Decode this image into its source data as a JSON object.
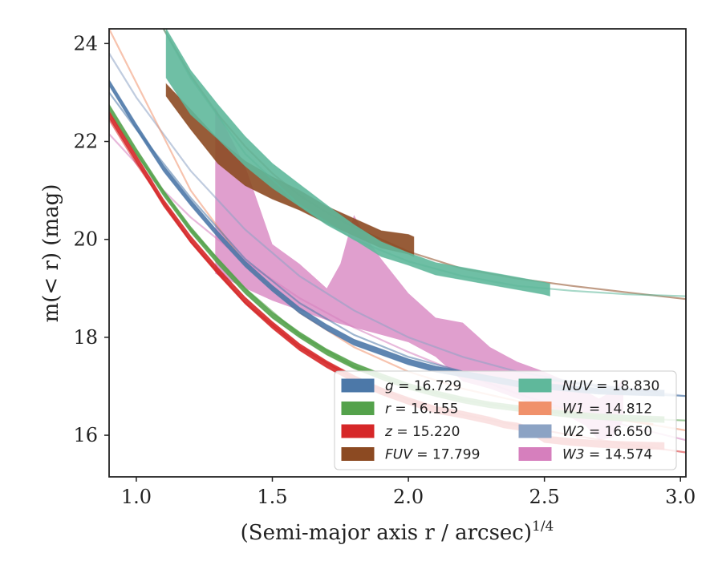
{
  "chart_data": {
    "type": "area",
    "xlabel": "(Semi-major axis r / arcsec)",
    "xlabel_superscript": "1/4",
    "ylabel": "m(< r) (mag)",
    "xlim": [
      0.9,
      3.02
    ],
    "ylim": [
      24.3,
      15.15
    ],
    "y_inverted": true,
    "grid": false,
    "legend_position": "lower-right",
    "legend_columns": 2,
    "x_ticks": [
      "1.0",
      "1.5",
      "2.0",
      "2.5",
      "3.0"
    ],
    "y_ticks": [
      "16",
      "18",
      "20",
      "22",
      "24"
    ],
    "series": [
      {
        "name": "g",
        "total_mag": "16.729",
        "color": "#4c78a8",
        "kind": "band",
        "width": 0.12,
        "x": [
          0.9,
          1.0,
          1.1,
          1.2,
          1.3,
          1.4,
          1.5,
          1.6,
          1.7,
          1.8,
          1.9,
          2.0,
          2.1,
          2.2,
          2.3,
          2.4,
          2.5,
          2.6,
          2.7,
          2.8,
          2.94
        ],
        "y": [
          23.2,
          22.3,
          21.45,
          20.75,
          20.1,
          19.5,
          19.0,
          18.55,
          18.2,
          17.9,
          17.7,
          17.5,
          17.35,
          17.25,
          17.15,
          17.05,
          17.0,
          16.95,
          16.9,
          16.88,
          16.86
        ],
        "model": {
          "x": [
            0.9,
            1.0,
            1.2,
            1.4,
            1.6,
            1.8,
            2.0,
            2.2,
            2.4,
            2.6,
            2.8,
            3.02
          ],
          "y": [
            23.0,
            22.25,
            20.85,
            19.6,
            18.7,
            18.05,
            17.6,
            17.3,
            17.1,
            16.95,
            16.85,
            16.8
          ]
        }
      },
      {
        "name": "r",
        "total_mag": "16.155",
        "color": "#54a24b",
        "kind": "band",
        "width": 0.12,
        "x": [
          0.9,
          1.0,
          1.1,
          1.2,
          1.3,
          1.4,
          1.5,
          1.6,
          1.7,
          1.8,
          1.9,
          2.0,
          2.1,
          2.2,
          2.3,
          2.4,
          2.5,
          2.6,
          2.7,
          2.8,
          2.94
        ],
        "y": [
          22.7,
          21.8,
          20.95,
          20.2,
          19.55,
          18.95,
          18.45,
          18.05,
          17.7,
          17.42,
          17.2,
          17.0,
          16.85,
          16.72,
          16.62,
          16.55,
          16.48,
          16.42,
          16.38,
          16.35,
          16.32
        ],
        "model": {
          "x": [
            0.9,
            1.0,
            1.2,
            1.4,
            1.6,
            1.8,
            2.0,
            2.2,
            2.4,
            2.6,
            2.8,
            3.02
          ],
          "y": [
            22.6,
            21.75,
            20.2,
            19.0,
            18.05,
            17.4,
            17.0,
            16.72,
            16.55,
            16.42,
            16.35,
            16.3
          ]
        }
      },
      {
        "name": "z",
        "total_mag": "15.220",
        "color": "#d62728",
        "kind": "band",
        "width": 0.14,
        "x": [
          0.9,
          1.0,
          1.1,
          1.2,
          1.3,
          1.4,
          1.5,
          1.6,
          1.7,
          1.8,
          1.9,
          2.0,
          2.1,
          2.2,
          2.3,
          2.35,
          2.4,
          2.45,
          2.5,
          2.6,
          2.7,
          2.8,
          2.94
        ],
        "y": [
          22.55,
          21.65,
          20.75,
          20.0,
          19.35,
          18.75,
          18.25,
          17.8,
          17.45,
          17.15,
          16.9,
          16.7,
          16.52,
          16.42,
          16.3,
          16.22,
          16.18,
          16.1,
          15.92,
          15.86,
          15.82,
          15.8,
          15.78
        ],
        "model": {
          "x": [
            0.9,
            1.0,
            1.2,
            1.4,
            1.6,
            1.8,
            2.0,
            2.2,
            2.4,
            2.6,
            2.8,
            3.02
          ],
          "y": [
            22.45,
            21.55,
            19.95,
            18.7,
            17.8,
            17.15,
            16.72,
            16.42,
            16.2,
            16.0,
            15.82,
            15.65
          ]
        }
      },
      {
        "name": "FUV",
        "total_mag": "17.799",
        "color": "#8c4a22",
        "kind": "band",
        "x": [
          1.11,
          1.2,
          1.3,
          1.4,
          1.5,
          1.6,
          1.7,
          1.8,
          1.9,
          2.0,
          2.02
        ],
        "y": [
          23.05,
          22.45,
          21.8,
          21.35,
          21.05,
          20.8,
          20.5,
          20.25,
          20.0,
          19.9,
          19.85
        ],
        "width": [
          0.25,
          0.4,
          0.5,
          0.5,
          0.45,
          0.4,
          0.35,
          0.35,
          0.35,
          0.4,
          0.4
        ],
        "model": {
          "x": [
            1.1,
            1.2,
            1.3,
            1.4,
            1.5,
            1.6,
            1.7,
            1.8,
            2.0,
            2.2,
            2.4,
            2.6,
            2.8,
            3.02
          ],
          "y": [
            24.3,
            23.35,
            22.55,
            21.9,
            21.35,
            20.9,
            20.55,
            20.25,
            19.75,
            19.4,
            19.2,
            19.05,
            18.92,
            18.78
          ]
        }
      },
      {
        "name": "NUV",
        "total_mag": "18.830",
        "color": "#5fb89b",
        "kind": "band",
        "x": [
          1.11,
          1.2,
          1.3,
          1.4,
          1.5,
          1.6,
          1.7,
          1.8,
          1.9,
          2.0,
          2.1,
          2.2,
          2.3,
          2.4,
          2.5,
          2.52
        ],
        "y": [
          23.8,
          23.0,
          22.4,
          21.8,
          21.3,
          20.9,
          20.5,
          20.15,
          19.8,
          19.6,
          19.4,
          19.3,
          19.2,
          19.1,
          19.0,
          18.97
        ],
        "width": [
          1.0,
          0.9,
          0.7,
          0.6,
          0.5,
          0.45,
          0.4,
          0.3,
          0.3,
          0.25,
          0.25,
          0.25,
          0.25,
          0.25,
          0.25,
          0.25
        ],
        "model": {
          "x": [
            1.1,
            1.2,
            1.4,
            1.6,
            1.8,
            2.0,
            2.2,
            2.4,
            2.6,
            2.8,
            3.02
          ],
          "y": [
            24.3,
            23.3,
            21.75,
            20.7,
            20.0,
            19.55,
            19.25,
            19.05,
            18.95,
            18.88,
            18.84
          ]
        }
      },
      {
        "name": "W1",
        "total_mag": "14.812",
        "color": "#f0916b",
        "kind": "line",
        "x": [
          2.5,
          2.6,
          2.7,
          2.8,
          2.9
        ],
        "y": [
          16.5,
          16.45,
          16.38,
          16.3,
          16.22
        ],
        "model": {
          "x": [
            0.9,
            1.0,
            1.2,
            1.4,
            1.6,
            1.8,
            2.0,
            2.2,
            2.4,
            2.6,
            2.8,
            3.02
          ],
          "y": [
            24.3,
            23.2,
            21.0,
            19.5,
            18.5,
            17.8,
            17.3,
            16.95,
            16.7,
            16.5,
            16.3,
            16.1
          ]
        }
      },
      {
        "name": "W2",
        "total_mag": "16.650",
        "color": "#8ca3c4",
        "kind": "line",
        "x": [
          2.5,
          2.7,
          2.9
        ],
        "y": [
          17.15,
          17.0,
          16.9
        ],
        "model": {
          "x": [
            0.9,
            1.0,
            1.2,
            1.4,
            1.6,
            1.8,
            2.0,
            2.2,
            2.4,
            2.6,
            2.8,
            3.02
          ],
          "y": [
            23.8,
            22.9,
            21.4,
            20.2,
            19.25,
            18.55,
            18.0,
            17.6,
            17.3,
            17.1,
            16.95,
            16.8
          ]
        }
      },
      {
        "name": "W3",
        "total_mag": "14.574",
        "color": "#d67fbd",
        "kind": "region",
        "upper": {
          "x": [
            1.29,
            1.4,
            1.5,
            1.6,
            1.7,
            1.8,
            1.9,
            2.0,
            2.1,
            2.2,
            2.3,
            2.4,
            2.5,
            2.6,
            2.65,
            2.7,
            2.75,
            2.79
          ],
          "y": [
            19.3,
            19.0,
            18.75,
            18.55,
            18.35,
            18.2,
            18.05,
            17.9,
            17.6,
            17.1,
            16.95,
            16.75,
            16.55,
            16.35,
            16.2,
            15.9,
            15.95,
            16.3
          ]
        },
        "lower": {
          "x": [
            1.29,
            1.4,
            1.5,
            1.6,
            1.7,
            1.75,
            1.8,
            1.85,
            1.9,
            2.0,
            2.1,
            2.2,
            2.3,
            2.4,
            2.5,
            2.6,
            2.7,
            2.75,
            2.79
          ],
          "y": [
            22.7,
            21.5,
            19.9,
            19.5,
            19.0,
            19.5,
            20.5,
            20.0,
            19.6,
            18.9,
            18.4,
            18.3,
            17.8,
            17.5,
            17.3,
            17.05,
            16.75,
            16.9,
            17.15
          ]
        },
        "model": {
          "x": [
            0.9,
            1.0,
            1.2,
            1.4,
            1.6,
            1.8,
            2.0,
            2.2,
            2.4,
            2.6,
            2.8,
            3.02
          ],
          "y": [
            22.15,
            21.55,
            20.45,
            19.55,
            18.8,
            18.2,
            17.7,
            17.25,
            16.85,
            16.5,
            16.2,
            15.9
          ]
        }
      }
    ]
  }
}
